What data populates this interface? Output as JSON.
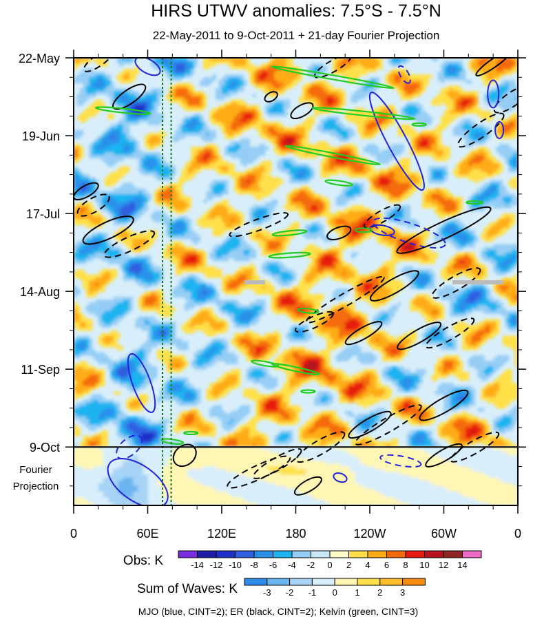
{
  "chart_data": {
    "type": "heatmap",
    "title": "HIRS UTWV anomalies: 7.5°S - 7.5°N",
    "subtitle": "22-May-2011 to 9-Oct-2011 + 21-day Fourier Projection",
    "x_ticks": [
      "0",
      "60E",
      "120E",
      "180",
      "120W",
      "60W",
      "0"
    ],
    "x_tick_lon": [
      0,
      60,
      120,
      180,
      240,
      300,
      360
    ],
    "y_ticks": [
      "22-May",
      "19-Jun",
      "17-Jul",
      "14-Aug",
      "11-Sep",
      "9-Oct"
    ],
    "y_tick_day": [
      0,
      28,
      56,
      84,
      112,
      140
    ],
    "projection_label": [
      "Fourier",
      "Projection"
    ],
    "xlim": [
      0,
      360
    ],
    "ylim_days": [
      0,
      161
    ],
    "obs_end_day": 140,
    "obs_colorbar": {
      "label": "Obs: K",
      "levels": [
        "-14",
        "-12",
        "-10",
        "-8",
        "-6",
        "-4",
        "-2",
        "0",
        "2",
        "4",
        "6",
        "8",
        "10",
        "12",
        "14"
      ],
      "colors": [
        "#7a2ee0",
        "#1e1ea8",
        "#1f2fc8",
        "#2f5fe0",
        "#2a90ea",
        "#1eb4f0",
        "#96cdf5",
        "#c8e8f8",
        "#fffbc8",
        "#ffe04a",
        "#ffac14",
        "#f46a08",
        "#e81a10",
        "#b8121e",
        "#8e2424",
        "#ee6cc8"
      ]
    },
    "waves_colorbar": {
      "label": "Sum of Waves: K",
      "levels": [
        "-3",
        "-2",
        "-1",
        "0",
        "1",
        "2",
        "3"
      ],
      "colors": [
        "#2a8ce8",
        "#6ab4f0",
        "#a6d3f6",
        "#d8eefa",
        "#fff6b4",
        "#ffe04a",
        "#ffbe28",
        "#f48a0e"
      ]
    },
    "legend_note": "MJO (blue, CINT=2); ER (black, CINT=2); Kelvin (green, CINT=3)",
    "series": [
      {
        "name": "MJO",
        "color": "#2222dd"
      },
      {
        "name": "ER",
        "color": "#000000"
      },
      {
        "name": "Kelvin",
        "color": "#22cc22"
      }
    ],
    "dotted_lines_lon": [
      72,
      79
    ]
  }
}
